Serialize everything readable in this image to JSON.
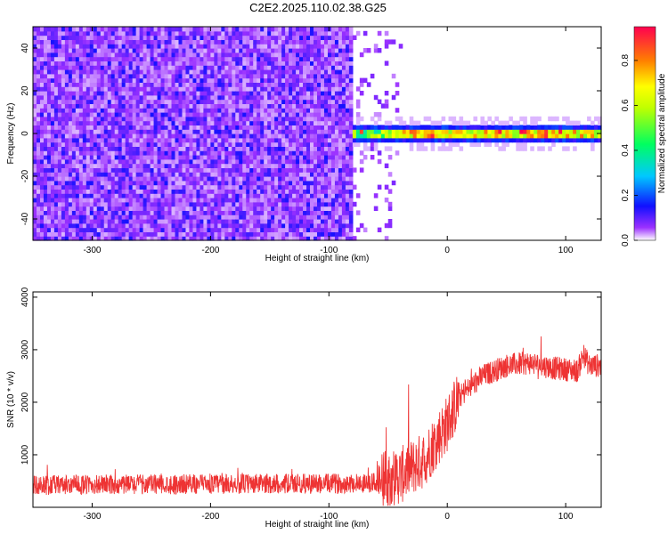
{
  "chart_data": [
    {
      "type": "heatmap",
      "title": "C2E2.2025.110.02.38.G25",
      "xlabel": "Height of straight line (km)",
      "ylabel": "Frequency (Hz)",
      "xlim": [
        -350,
        130
      ],
      "ylim": [
        -50,
        50
      ],
      "xticks": [
        "-300",
        "-200",
        "-100",
        "0",
        "100"
      ],
      "yticks": [
        "-40",
        "-20",
        "0",
        "20",
        "40"
      ],
      "colorbar": {
        "label": "Normalized spectral amplitude",
        "range": [
          0.0,
          0.95
        ],
        "ticks": [
          "0.0",
          "0.2",
          "0.4",
          "0.6",
          "0.8"
        ],
        "colormap": [
          "#ffffff",
          "#8000ff",
          "#0000ff",
          "#00e0ff",
          "#00ff00",
          "#ffff00",
          "#ff8000",
          "#ff0040"
        ]
      },
      "description_values": {
        "noise_region_x": [
          -350,
          -80
        ],
        "noise_level": 0.1,
        "signal_band_freq_hz": 0,
        "signal_band_x": [
          -80,
          130
        ],
        "signal_peak_amplitude": 0.9
      }
    },
    {
      "type": "line",
      "xlabel": "Height of straight line (km)",
      "ylabel": "SNR (10 * v/v)",
      "xlim": [
        -350,
        130
      ],
      "ylim": [
        0,
        4100
      ],
      "xticks": [
        "-300",
        "-200",
        "-100",
        "0",
        "100"
      ],
      "yticks": [
        "1000",
        "2000",
        "3000",
        "4000"
      ],
      "series": [
        {
          "color": "#ee3333",
          "x": [
            -350,
            -300,
            -250,
            -200,
            -150,
            -100,
            -60,
            -40,
            -20,
            0,
            10,
            30,
            50,
            70,
            90,
            110,
            115,
            120,
            130
          ],
          "y": [
            420,
            430,
            440,
            440,
            450,
            450,
            470,
            600,
            900,
            1600,
            2100,
            2500,
            2700,
            2750,
            2650,
            2600,
            2900,
            2700,
            2700
          ]
        }
      ]
    }
  ]
}
